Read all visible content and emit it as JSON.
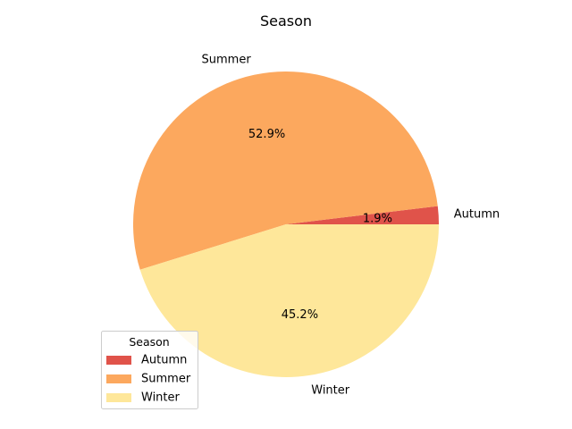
{
  "chart_data": {
    "type": "pie",
    "title": "Season",
    "categories": [
      "Autumn",
      "Summer",
      "Winter"
    ],
    "values": [
      1.9,
      52.9,
      45.2
    ],
    "percent_labels": [
      "1.9%",
      "52.9%",
      "45.2%"
    ],
    "colors": [
      "#e0534a",
      "#fca85e",
      "#fee79a"
    ],
    "start_angle_deg": 0,
    "direction": "counterclockwise",
    "legend": {
      "title": "Season",
      "placement": "lower-left",
      "entries": [
        "Autumn",
        "Summer",
        "Winter"
      ]
    }
  }
}
